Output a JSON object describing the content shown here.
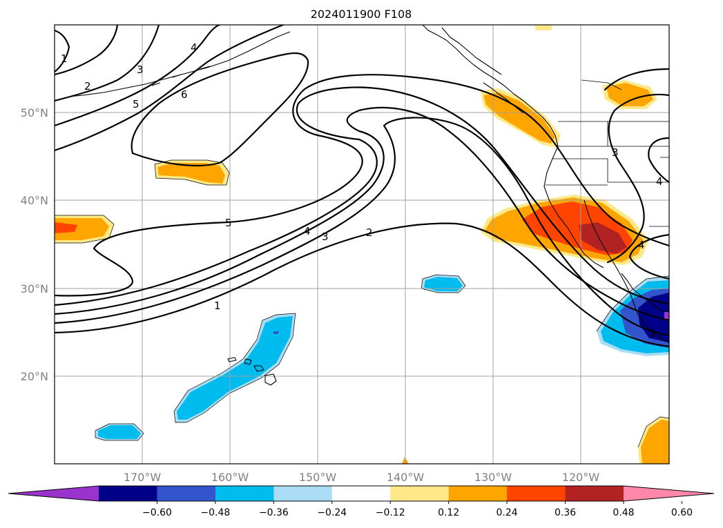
{
  "title": "2024011900 F108",
  "lat_labels": [
    "50°N",
    "40°N",
    "30°N",
    "20°N"
  ],
  "lon_labels": [
    "170°W",
    "160°W",
    "150°W",
    "140°W",
    "130°W",
    "120°W"
  ],
  "colorbar": {
    "ticks": [
      "−0.60",
      "−0.48",
      "−0.36",
      "−0.24",
      "−0.12",
      "0.12",
      "0.24",
      "0.36",
      "0.48",
      "0.60"
    ],
    "colors": [
      "#9933cc",
      "#000088",
      "#3355cc",
      "#00bbee",
      "#aaddf5",
      "#ffffff",
      "#ffe888",
      "#ffa500",
      "#ff4400",
      "#b22222",
      "#ff88aa"
    ]
  },
  "contour_labels": [
    "1",
    "2",
    "3",
    "4",
    "5",
    "6",
    "5",
    "4",
    "3",
    "2",
    "1",
    "3",
    "4",
    "4",
    "1"
  ]
}
